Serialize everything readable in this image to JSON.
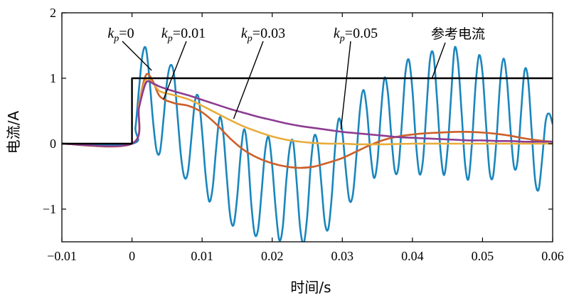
{
  "chart_data": {
    "type": "line",
    "title": "",
    "xlabel": "时间/s",
    "ylabel": "电流/A",
    "xlim": [
      -0.01,
      0.06
    ],
    "ylim": [
      -1.5,
      2
    ],
    "xticks": [
      -0.01,
      0,
      0.01,
      0.02,
      0.03,
      0.04,
      0.05,
      0.06
    ],
    "xtick_labels": [
      "−0.01",
      "0",
      "0.01",
      "0.02",
      "0.03",
      "0.04",
      "0.05",
      "0.06"
    ],
    "yticks": [
      -1,
      0,
      1,
      2
    ],
    "ytick_labels": [
      "−1",
      "0",
      "1",
      "2"
    ],
    "grid": false,
    "legend": "none (inline annotations)",
    "series": [
      {
        "name": "参考电流",
        "color": "#000000",
        "x": [
          -0.01,
          0,
          0,
          0.06
        ],
        "y": [
          0,
          0,
          1,
          1
        ]
      },
      {
        "name": "kp=0",
        "color": "#1a86bd",
        "x": [
          -0.01,
          0,
          0.0005,
          0.001,
          0.0015,
          0.002,
          0.0025,
          0.003,
          0.0035,
          0.004,
          0.0045,
          0.005,
          0.0055,
          0.006,
          0.0065,
          0.007,
          0.0075,
          0.008,
          0.0085,
          0.009,
          0.0095,
          0.01,
          0.0105,
          0.011,
          0.0115,
          0.012,
          0.0125,
          0.013,
          0.0135,
          0.014,
          0.0145,
          0.015,
          0.0155,
          0.016,
          0.0165,
          0.017,
          0.0175,
          0.018,
          0.0185,
          0.019,
          0.0195,
          0.02,
          0.0205,
          0.021,
          0.0215,
          0.022,
          0.0225,
          0.023,
          0.0235,
          0.024,
          0.0245,
          0.025,
          0.0255,
          0.026,
          0.0265,
          0.027,
          0.0275,
          0.028,
          0.0285,
          0.029,
          0.0295,
          0.03,
          0.0305,
          0.031,
          0.0315,
          0.032,
          0.0325,
          0.033,
          0.0335,
          0.034,
          0.0345,
          0.035,
          0.0355,
          0.036,
          0.0365,
          0.037,
          0.0375,
          0.038,
          0.0385,
          0.039,
          0.0395,
          0.04,
          0.0405,
          0.041,
          0.0415,
          0.042,
          0.0425,
          0.043,
          0.0435,
          0.044,
          0.0445,
          0.045,
          0.0455,
          0.046,
          0.0465,
          0.047,
          0.0475,
          0.048,
          0.0485,
          0.049,
          0.0495,
          0.05,
          0.0505,
          0.051,
          0.0515,
          0.052,
          0.0525,
          0.053,
          0.0535,
          0.054,
          0.0545,
          0.055,
          0.0555,
          0.056,
          0.0565,
          0.057,
          0.0575,
          0.058,
          0.0585,
          0.059,
          0.0595,
          0.06
        ],
        "y": [
          0,
          0,
          0.25,
          0.84,
          1.36,
          1.45,
          0.98,
          0.35,
          -0.1,
          -0.12,
          0.38,
          0.95,
          1.2,
          1.05,
          0.42,
          -0.2,
          -0.52,
          -0.42,
          0.12,
          0.66,
          0.7,
          0.18,
          -0.48,
          -0.88,
          -0.68,
          -0.08,
          0.4,
          0.18,
          -0.48,
          -1.1,
          -1.24,
          -0.82,
          -0.16,
          0.22,
          -0.12,
          -0.9,
          -1.38,
          -1.3,
          -0.72,
          -0.1,
          0.1,
          -0.34,
          -1.0,
          -1.47,
          -1.28,
          -0.58,
          -0.06,
          0.02,
          -0.6,
          -1.3,
          -1.52,
          -1.1,
          -0.32,
          0.12,
          -0.02,
          -0.6,
          -1.2,
          -1.3,
          -0.8,
          -0.02,
          0.38,
          0.18,
          -0.4,
          -0.86,
          -0.78,
          -0.2,
          0.5,
          0.82,
          0.52,
          -0.12,
          -0.52,
          -0.28,
          0.46,
          1.0,
          0.78,
          0.1,
          -0.42,
          -0.36,
          0.32,
          1.08,
          1.28,
          0.82,
          0.02,
          -0.46,
          -0.26,
          0.52,
          1.28,
          1.36,
          0.7,
          -0.1,
          -0.48,
          -0.1,
          0.7,
          1.45,
          1.25,
          0.5,
          -0.3,
          -0.54,
          0.02,
          0.88,
          1.35,
          1.08,
          0.3,
          -0.42,
          -0.5,
          0.08,
          0.92,
          1.3,
          0.95,
          0.2,
          -0.36,
          -0.26,
          0.48,
          1.12,
          0.98,
          0.2,
          -0.55,
          -0.7,
          -0.24,
          0.34,
          0.46,
          0.3
        ]
      },
      {
        "name": "kp=0.01",
        "color": "#cc5f29",
        "x": [
          -0.01,
          0,
          0.001,
          0.002,
          0.003,
          0.004,
          0.006,
          0.008,
          0.01,
          0.012,
          0.014,
          0.016,
          0.018,
          0.02,
          0.022,
          0.024,
          0.026,
          0.028,
          0.03,
          0.032,
          0.034,
          0.036,
          0.038,
          0.04,
          0.042,
          0.044,
          0.046,
          0.048,
          0.05,
          0.052,
          0.054,
          0.056,
          0.058,
          0.06
        ],
        "y": [
          0,
          0,
          0.6,
          1.05,
          0.95,
          0.72,
          0.62,
          0.58,
          0.48,
          0.3,
          0.08,
          -0.1,
          -0.22,
          -0.3,
          -0.35,
          -0.37,
          -0.35,
          -0.29,
          -0.22,
          -0.12,
          -0.02,
          0.06,
          0.11,
          0.14,
          0.16,
          0.17,
          0.18,
          0.18,
          0.17,
          0.15,
          0.12,
          0.08,
          0.05,
          0.03
        ]
      },
      {
        "name": "kp=0.03",
        "color": "#e8ac3a",
        "x": [
          -0.01,
          0,
          0.001,
          0.002,
          0.003,
          0.004,
          0.006,
          0.008,
          0.01,
          0.012,
          0.014,
          0.016,
          0.018,
          0.02,
          0.022,
          0.024,
          0.026,
          0.028,
          0.03,
          0.032,
          0.034,
          0.036,
          0.04,
          0.045,
          0.05,
          0.055,
          0.06
        ],
        "y": [
          0,
          0,
          0.6,
          0.98,
          0.92,
          0.8,
          0.74,
          0.68,
          0.58,
          0.47,
          0.36,
          0.26,
          0.18,
          0.11,
          0.06,
          0.03,
          0.01,
          0.0,
          0.0,
          -0.01,
          -0.01,
          -0.01,
          0.0,
          0.0,
          0.0,
          0.0,
          0.0
        ]
      },
      {
        "name": "kp=0.05",
        "color": "#8d3c93",
        "x": [
          -0.01,
          0,
          0.001,
          0.002,
          0.003,
          0.004,
          0.006,
          0.008,
          0.01,
          0.012,
          0.014,
          0.016,
          0.018,
          0.02,
          0.022,
          0.024,
          0.026,
          0.028,
          0.03,
          0.032,
          0.034,
          0.036,
          0.038,
          0.04,
          0.042,
          0.044,
          0.046,
          0.048,
          0.05,
          0.052,
          0.054,
          0.056,
          0.058,
          0.06
        ],
        "y": [
          0,
          0,
          0.55,
          0.93,
          0.92,
          0.87,
          0.8,
          0.74,
          0.67,
          0.6,
          0.53,
          0.47,
          0.41,
          0.36,
          0.31,
          0.27,
          0.24,
          0.21,
          0.18,
          0.16,
          0.14,
          0.12,
          0.1,
          0.09,
          0.08,
          0.07,
          0.06,
          0.05,
          0.05,
          0.04,
          0.04,
          0.03,
          0.03,
          0.03
        ]
      }
    ],
    "annotations": [
      {
        "series": "kp=0",
        "k": "k",
        "sub": "p",
        "value": "=0",
        "target_x": 0.0028,
        "target_y": 1.12
      },
      {
        "series": "kp=0.01",
        "k": "k",
        "sub": "p",
        "value": "=0.01",
        "target_x": 0.0045,
        "target_y": 0.68
      },
      {
        "series": "kp=0.03",
        "k": "k",
        "sub": "p",
        "value": "=0.03",
        "target_x": 0.0145,
        "target_y": 0.38
      },
      {
        "series": "kp=0.05",
        "k": "k",
        "sub": "p",
        "value": "=0.05",
        "target_x": 0.0298,
        "target_y": 0.22
      },
      {
        "series": "参考电流",
        "text": "参考电流",
        "target_x": 0.0428,
        "target_y": 1.0
      }
    ]
  }
}
